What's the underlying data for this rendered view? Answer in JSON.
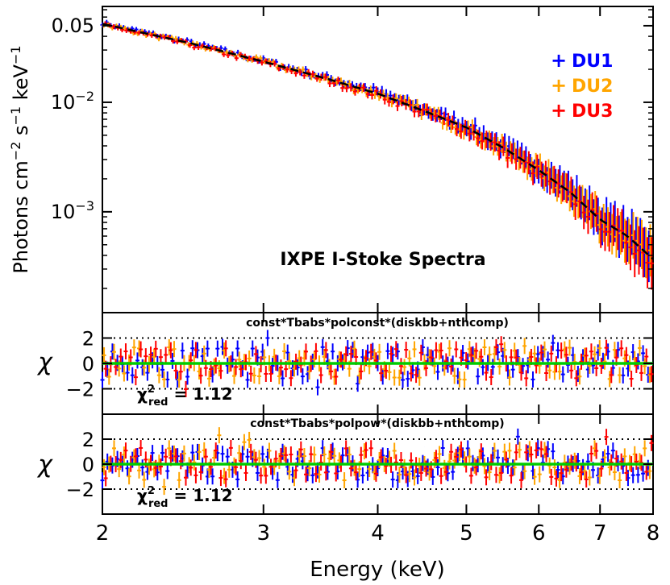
{
  "chart_data": [
    {
      "type": "scatter",
      "panel": "spectrum",
      "title": "IXPE I-Stoke Spectra",
      "xlabel": "Energy (keV)",
      "ylabel": "Photons cm^-2 s^-1 keV^-1",
      "xscale": "log",
      "yscale": "log",
      "xlim": [
        2,
        8
      ],
      "ylim": [
        0.00012,
        0.075
      ],
      "ytick_labels": [
        "0.05",
        "10^-2",
        "10^-3"
      ],
      "ytick_values": [
        0.05,
        0.01,
        0.001
      ],
      "legend_position": "top-right",
      "series": [
        {
          "name": "DU1",
          "color": "#0000ff",
          "x": [
            2.0,
            2.5,
            3.0,
            3.5,
            4.0,
            4.5,
            5.0,
            5.5,
            6.0,
            6.5,
            7.0,
            7.5,
            8.0
          ],
          "y": [
            0.053,
            0.035,
            0.024,
            0.017,
            0.0125,
            0.0085,
            0.0062,
            0.0039,
            0.0025,
            0.0016,
            0.00088,
            0.00062,
            0.0004
          ]
        },
        {
          "name": "DU2",
          "color": "#ffa500",
          "x": [
            2.0,
            2.5,
            3.0,
            3.5,
            4.0,
            4.5,
            5.0,
            5.5,
            6.0,
            6.5,
            7.0,
            7.5,
            8.0
          ],
          "y": [
            0.052,
            0.034,
            0.0235,
            0.0165,
            0.012,
            0.0083,
            0.0058,
            0.0037,
            0.0024,
            0.0015,
            0.00085,
            0.0006,
            0.00038
          ]
        },
        {
          "name": "DU3",
          "color": "#ff0000",
          "x": [
            2.0,
            2.5,
            3.0,
            3.5,
            4.0,
            4.5,
            5.0,
            5.5,
            6.0,
            6.5,
            7.0,
            7.5,
            8.0
          ],
          "y": [
            0.051,
            0.0335,
            0.023,
            0.0162,
            0.0118,
            0.0081,
            0.0057,
            0.0036,
            0.0023,
            0.0014,
            0.0008,
            0.00055,
            0.00035
          ]
        }
      ],
      "model": {
        "name": "model",
        "color": "#000000",
        "x": [
          2.0,
          2.5,
          3.0,
          3.5,
          4.0,
          4.5,
          5.0,
          5.5,
          6.0,
          6.5,
          7.0,
          7.5,
          8.0
        ],
        "y": [
          0.052,
          0.0345,
          0.0235,
          0.0166,
          0.012,
          0.0083,
          0.0059,
          0.0038,
          0.0024,
          0.0015,
          0.00085,
          0.0006,
          0.00037
        ]
      }
    },
    {
      "type": "scatter",
      "panel": "residuals-1",
      "title": "const*Tbabs*polconst*(diskbb+nthcomp)",
      "ylabel": "χ",
      "xscale": "log",
      "xlim": [
        2,
        8
      ],
      "ylim": [
        -4,
        4
      ],
      "ytick_values": [
        2,
        0,
        -2
      ],
      "ytick_labels": [
        "2",
        "0",
        "−2"
      ],
      "reference_lines": [
        2,
        -2
      ],
      "annotation": {
        "symbol": "χ",
        "sup": "2",
        "sub": "red",
        "text": "= 1.12"
      },
      "series": [
        {
          "name": "DU1",
          "color": "#0000ff",
          "x": [
            2.0,
            2.5,
            3.0,
            3.5,
            4.0,
            4.5,
            5.0,
            5.5,
            6.0,
            6.5,
            7.0,
            7.5,
            8.0
          ],
          "y": [
            0.3,
            -0.8,
            1.2,
            0.5,
            -0.3,
            1.5,
            0.9,
            -0.6,
            0.4,
            1.1,
            -1.5,
            0.7,
            0.2
          ]
        },
        {
          "name": "DU2",
          "color": "#ffa500",
          "x": [
            2.0,
            2.5,
            3.0,
            3.5,
            4.0,
            4.5,
            5.0,
            5.5,
            6.0,
            6.5,
            7.0,
            7.5,
            8.0
          ],
          "y": [
            -0.5,
            1.3,
            -1.1,
            0.6,
            1.7,
            -0.4,
            0.2,
            1.0,
            -0.9,
            0.3,
            -0.2,
            -0.7,
            0.4
          ]
        },
        {
          "name": "DU3",
          "color": "#ff0000",
          "x": [
            2.0,
            2.5,
            3.0,
            3.5,
            4.0,
            4.5,
            5.0,
            5.5,
            6.0,
            6.5,
            7.0,
            7.5,
            8.0
          ],
          "y": [
            0.8,
            0.2,
            -0.4,
            -0.9,
            0.6,
            0.1,
            -0.7,
            0.5,
            0.3,
            -0.5,
            0.6,
            -0.3,
            -0.4
          ]
        }
      ],
      "zero_line": {
        "y": 0,
        "color": "#00cc00"
      }
    },
    {
      "type": "scatter",
      "panel": "residuals-2",
      "title": "const*Tbabs*polpow*(diskbb+nthcomp)",
      "ylabel": "χ",
      "xscale": "log",
      "xlim": [
        2,
        8
      ],
      "ylim": [
        -4,
        4
      ],
      "ytick_values": [
        2,
        0,
        -2
      ],
      "ytick_labels": [
        "2",
        "0",
        "−2"
      ],
      "reference_lines": [
        2,
        -2
      ],
      "annotation": {
        "symbol": "χ",
        "sup": "2",
        "sub": "red",
        "text": "= 1.12"
      },
      "xtick_values": [
        2,
        3,
        4,
        5,
        6,
        7,
        8
      ],
      "xtick_labels": [
        "2",
        "3",
        "4",
        "5",
        "6",
        "7",
        "8"
      ],
      "series": [
        {
          "name": "DU1",
          "color": "#0000ff",
          "x": [
            2.0,
            2.5,
            3.0,
            3.5,
            4.0,
            4.5,
            5.0,
            5.5,
            6.0,
            6.5,
            7.0,
            7.5,
            8.0
          ],
          "y": [
            0.2,
            -0.9,
            1.1,
            0.6,
            -0.2,
            1.4,
            0.8,
            -0.7,
            0.5,
            1.0,
            -1.6,
            0.8,
            0.1
          ]
        },
        {
          "name": "DU2",
          "color": "#ffa500",
          "x": [
            2.0,
            2.5,
            3.0,
            3.5,
            4.0,
            4.5,
            5.0,
            5.5,
            6.0,
            6.5,
            7.0,
            7.5,
            8.0
          ],
          "y": [
            -0.4,
            1.2,
            -1.0,
            0.7,
            1.6,
            -0.3,
            0.3,
            0.9,
            -0.8,
            0.4,
            -0.1,
            -0.6,
            0.3
          ]
        },
        {
          "name": "DU3",
          "color": "#ff0000",
          "x": [
            2.0,
            2.5,
            3.0,
            3.5,
            4.0,
            4.5,
            5.0,
            5.5,
            6.0,
            6.5,
            7.0,
            7.5,
            8.0
          ],
          "y": [
            0.7,
            0.1,
            -0.5,
            -0.8,
            0.5,
            0.2,
            -0.6,
            0.4,
            0.4,
            -0.4,
            0.5,
            -0.4,
            -0.3
          ]
        }
      ],
      "zero_line": {
        "y": 0,
        "color": "#00cc00"
      }
    }
  ]
}
